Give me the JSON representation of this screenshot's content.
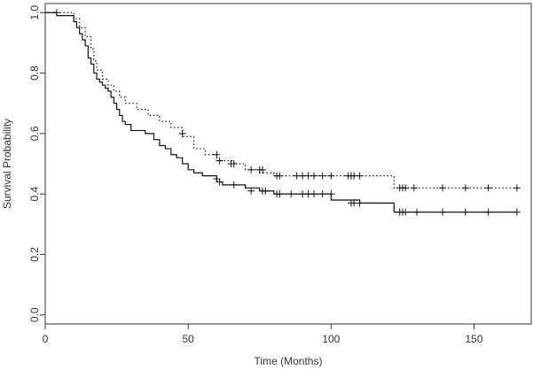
{
  "chart_data": {
    "type": "line",
    "title": "",
    "xlabel": "Time (Months)",
    "ylabel": "Survival Probability",
    "xlim": [
      0,
      170
    ],
    "ylim": [
      -0.03,
      1.03
    ],
    "x_ticks": [
      0,
      50,
      100,
      150
    ],
    "y_ticks": [
      0.0,
      0.2,
      0.4,
      0.6,
      0.8,
      1.0
    ],
    "x_tick_labels": [
      "0",
      "50",
      "100",
      "150"
    ],
    "y_tick_labels": [
      "0.0",
      "0.2",
      "0.4",
      "0.6",
      "0.8",
      "1.0"
    ],
    "grid": false,
    "legend": false,
    "series": [
      {
        "style": "solid",
        "x": [
          0,
          4,
          10,
          11,
          12,
          13,
          14,
          15,
          16,
          17,
          18,
          19,
          20,
          21,
          22,
          23,
          24,
          25,
          26,
          27,
          28,
          30,
          35,
          38,
          40,
          42,
          44,
          46,
          48,
          50,
          52,
          55,
          60,
          62,
          65,
          70,
          75,
          80,
          100,
          110,
          122,
          165
        ],
        "y": [
          1.0,
          0.99,
          0.97,
          0.95,
          0.93,
          0.91,
          0.89,
          0.85,
          0.83,
          0.8,
          0.78,
          0.77,
          0.76,
          0.75,
          0.74,
          0.72,
          0.7,
          0.68,
          0.66,
          0.64,
          0.63,
          0.61,
          0.6,
          0.58,
          0.56,
          0.55,
          0.53,
          0.52,
          0.5,
          0.48,
          0.47,
          0.46,
          0.44,
          0.43,
          0.43,
          0.42,
          0.41,
          0.4,
          0.38,
          0.37,
          0.34,
          0.34
        ],
        "censored": [
          [
            4,
            1.0
          ],
          [
            60,
            0.45
          ],
          [
            61,
            0.44
          ],
          [
            66,
            0.43
          ],
          [
            72,
            0.41
          ],
          [
            76,
            0.41
          ],
          [
            77,
            0.41
          ],
          [
            81,
            0.4
          ],
          [
            82,
            0.4
          ],
          [
            86,
            0.4
          ],
          [
            90,
            0.4
          ],
          [
            92,
            0.4
          ],
          [
            94,
            0.4
          ],
          [
            97,
            0.4
          ],
          [
            100,
            0.4
          ],
          [
            107,
            0.37
          ],
          [
            108,
            0.37
          ],
          [
            110,
            0.37
          ],
          [
            124,
            0.34
          ],
          [
            125,
            0.34
          ],
          [
            126,
            0.34
          ],
          [
            130,
            0.34
          ],
          [
            139,
            0.34
          ],
          [
            147,
            0.34
          ],
          [
            155,
            0.34
          ],
          [
            165,
            0.34
          ]
        ]
      },
      {
        "style": "dotted",
        "x": [
          0,
          10,
          12,
          14,
          16,
          17,
          18,
          20,
          22,
          24,
          26,
          28,
          32,
          36,
          40,
          44,
          48,
          52,
          56,
          60,
          66,
          70,
          75,
          80,
          122,
          165
        ],
        "y": [
          1.0,
          0.98,
          0.95,
          0.92,
          0.88,
          0.84,
          0.81,
          0.78,
          0.76,
          0.74,
          0.72,
          0.7,
          0.68,
          0.66,
          0.64,
          0.62,
          0.59,
          0.55,
          0.53,
          0.51,
          0.5,
          0.48,
          0.47,
          0.46,
          0.42,
          0.42
        ],
        "censored": [
          [
            48,
            0.6
          ],
          [
            60,
            0.53
          ],
          [
            61,
            0.51
          ],
          [
            65,
            0.5
          ],
          [
            66,
            0.5
          ],
          [
            72,
            0.48
          ],
          [
            75,
            0.48
          ],
          [
            76,
            0.48
          ],
          [
            81,
            0.46
          ],
          [
            82,
            0.46
          ],
          [
            88,
            0.46
          ],
          [
            90,
            0.46
          ],
          [
            92,
            0.46
          ],
          [
            94,
            0.46
          ],
          [
            97,
            0.46
          ],
          [
            100,
            0.46
          ],
          [
            106,
            0.46
          ],
          [
            107,
            0.46
          ],
          [
            108,
            0.46
          ],
          [
            110,
            0.46
          ],
          [
            124,
            0.42
          ],
          [
            125,
            0.42
          ],
          [
            126,
            0.42
          ],
          [
            129,
            0.42
          ],
          [
            139,
            0.42
          ],
          [
            147,
            0.42
          ],
          [
            155,
            0.42
          ],
          [
            165,
            0.42
          ]
        ]
      }
    ]
  }
}
